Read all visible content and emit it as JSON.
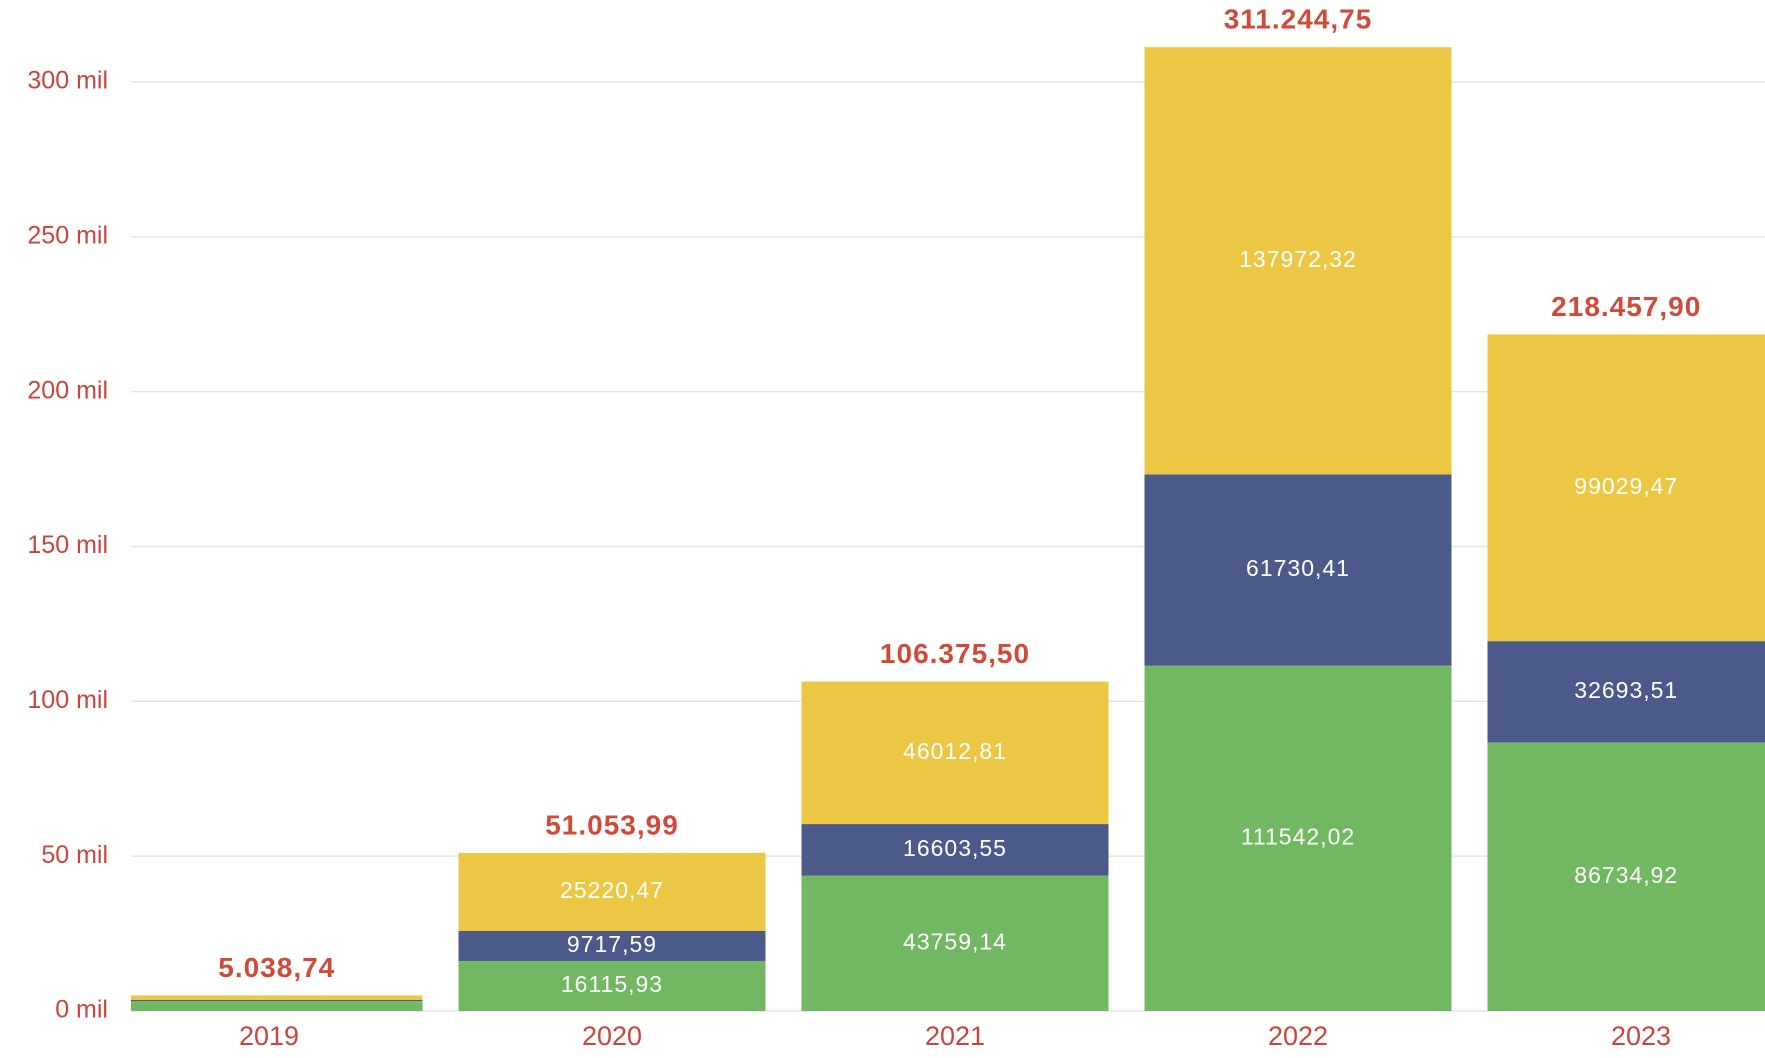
{
  "chart_data": {
    "type": "stacked_bar",
    "categories": [
      "2019",
      "2020",
      "2021",
      "2022",
      "2023"
    ],
    "series": [
      {
        "color": "#72b862",
        "values": [
          3200,
          16115.93,
          43759.14,
          111542.02,
          86734.92
        ],
        "value_labels": [
          null,
          "16115,93",
          "43759,14",
          "111542,02",
          "86734,92"
        ]
      },
      {
        "color": "#4b5a8a",
        "values": [
          400,
          9717.59,
          16603.55,
          61730.41,
          32693.51
        ],
        "value_labels": [
          null,
          "9717,59",
          "16603,55",
          "61730,41",
          "32693,51"
        ]
      },
      {
        "color": "#ebc744",
        "values": [
          1438.74,
          25220.47,
          46012.81,
          137972.32,
          99029.47
        ],
        "value_labels": [
          null,
          "25220,47",
          "46012,81",
          "137972,32",
          "99029,47"
        ]
      }
    ],
    "totals": {
      "values": [
        5038.74,
        51053.99,
        106375.5,
        311244.75,
        218457.9
      ],
      "value_labels": [
        "5.038,74",
        "51.053,99",
        "106.375,50",
        "311.244,75",
        "218.457,90"
      ]
    },
    "ylim": [
      0,
      326000
    ],
    "yticks": [
      {
        "value": 0,
        "label": "0 mil"
      },
      {
        "value": 50000,
        "label": "50 mil"
      },
      {
        "value": 100000,
        "label": "100 mil"
      },
      {
        "value": 150000,
        "label": "150 mil"
      },
      {
        "value": 200000,
        "label": "200 mil"
      },
      {
        "value": 250000,
        "label": "250 mil"
      },
      {
        "value": 300000,
        "label": "300 mil"
      }
    ],
    "grid": true
  }
}
